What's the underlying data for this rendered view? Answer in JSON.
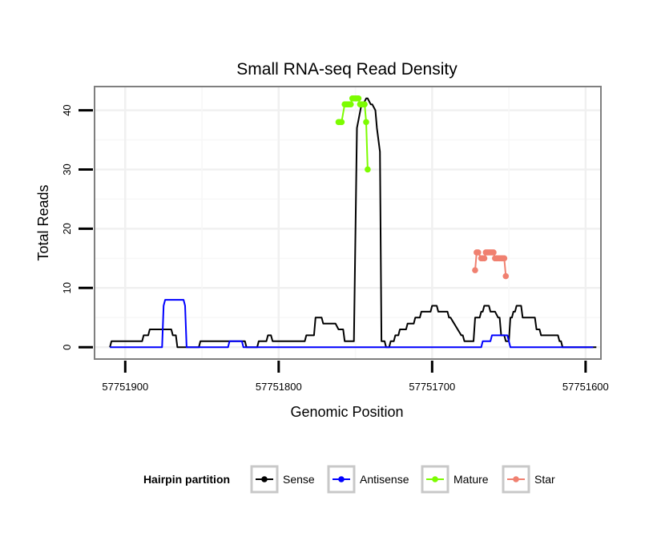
{
  "chart_data": {
    "type": "line",
    "title": "Small RNA-seq Read Density",
    "xlabel": "Genomic Position",
    "ylabel": "Total Reads",
    "xlim": [
      57751920,
      57751590
    ],
    "ylim": [
      -2,
      44
    ],
    "x_reversed": true,
    "grid": true,
    "x_ticks": [
      57751900,
      57751800,
      57751700,
      57751600
    ],
    "x_tick_labels": [
      "57751900",
      "57751800",
      "57751700",
      "57751600"
    ],
    "y_ticks": [
      0,
      10,
      20,
      30,
      40
    ],
    "y_tick_labels": [
      "0",
      "10",
      "20",
      "30",
      "40"
    ],
    "legend": {
      "title": "Hairpin partition",
      "position": "bottom",
      "entries": [
        {
          "label": "Sense",
          "color": "#000000"
        },
        {
          "label": "Antisense",
          "color": "#0000ff"
        },
        {
          "label": "Mature",
          "color": "#7cfc00"
        },
        {
          "label": "Star",
          "color": "#f08070"
        }
      ]
    },
    "series": [
      {
        "name": "Sense",
        "color": "#000000",
        "x": [
          57751910,
          57751909,
          57751889,
          57751888,
          57751885,
          57751884,
          57751870,
          57751869,
          57751867,
          57751866,
          57751852,
          57751851,
          57751822,
          57751821,
          57751814,
          57751813,
          57751808,
          57751807,
          57751805,
          57751804,
          57751783,
          57751782,
          57751777,
          57751776,
          57751772,
          57751771,
          57751769,
          57751767,
          57751763,
          57751761,
          57751758,
          57751757,
          57751751,
          57751749,
          57751746,
          57751745,
          57751743,
          57751742,
          57751740,
          57751739,
          57751737,
          57751736,
          57751734,
          57751733,
          57751731,
          57751730,
          57751728,
          57751727,
          57751725,
          57751724,
          57751722,
          57751721,
          57751717,
          57751716,
          57751712,
          57751711,
          57751708,
          57751707,
          57751701,
          57751700,
          57751697,
          57751696,
          57751690,
          57751689,
          57751688,
          57751681,
          57751680,
          57751679,
          57751673,
          57751672,
          57751669,
          57751668,
          57751667,
          57751666,
          57751663,
          57751662,
          57751659,
          57751657,
          57751656,
          57751655,
          57751653,
          57751652,
          57751650,
          57751649,
          57751648,
          57751647,
          57751646,
          57751645,
          57751642,
          57751641,
          57751633,
          57751632,
          57751630,
          57751629,
          57751618,
          57751617,
          57751616,
          57751615,
          57751597,
          57751595,
          57751593
        ],
        "y": [
          0,
          1,
          1,
          2,
          2,
          3,
          3,
          2,
          2,
          0,
          0,
          1,
          1,
          0,
          0,
          1,
          1,
          2,
          2,
          1,
          1,
          2,
          2,
          5,
          5,
          4,
          4,
          4,
          4,
          3,
          3,
          1,
          1,
          37,
          41,
          41,
          42,
          42,
          41,
          41,
          40,
          37,
          33,
          1,
          1,
          0,
          0,
          1,
          1,
          2,
          2,
          3,
          3,
          4,
          4,
          5,
          5,
          6,
          6,
          7,
          7,
          6,
          6,
          5,
          5,
          2,
          2,
          1,
          1,
          5,
          5,
          6,
          6,
          7,
          7,
          6,
          6,
          5,
          5,
          2,
          2,
          1,
          1,
          5,
          5,
          6,
          6,
          7,
          7,
          5,
          5,
          3,
          3,
          2,
          2,
          1,
          1,
          0,
          0,
          0,
          0
        ]
      },
      {
        "name": "Antisense",
        "color": "#0000ff",
        "x": [
          57751910,
          57751876,
          57751875,
          57751874,
          57751862,
          57751861,
          57751860,
          57751833,
          57751832,
          57751824,
          57751823,
          57751668,
          57751667,
          57751666,
          57751662,
          57751661,
          57751651,
          57751650,
          57751649,
          57751595
        ],
        "y": [
          0,
          0,
          7,
          8,
          8,
          7,
          0,
          0,
          1,
          1,
          0,
          0,
          1,
          1,
          1,
          2,
          2,
          1,
          0,
          0
        ]
      },
      {
        "name": "Mature",
        "color": "#7cfc00",
        "x": [
          57751761,
          57751760,
          57751759,
          57751757,
          57751756,
          57751755,
          57751754,
          57751753,
          57751752,
          57751751,
          57751750,
          57751749,
          57751748,
          57751747,
          57751746,
          57751745,
          57751744,
          57751743,
          57751742
        ],
        "y": [
          38,
          38,
          38,
          41,
          41,
          41,
          41,
          41,
          42,
          42,
          42,
          42,
          42,
          41,
          41,
          41,
          41,
          38,
          30
        ]
      },
      {
        "name": "Star",
        "color": "#f08070",
        "x": [
          57751672,
          57751671,
          57751670,
          57751668,
          57751667,
          57751666,
          57751665,
          57751664,
          57751663,
          57751662,
          57751661,
          57751660,
          57751659,
          57751658,
          57751657,
          57751656,
          57751655,
          57751654,
          57751653,
          57751652
        ],
        "y": [
          13,
          16,
          16,
          15,
          15,
          15,
          16,
          16,
          16,
          16,
          16,
          16,
          15,
          15,
          15,
          15,
          15,
          15,
          15,
          12
        ]
      }
    ]
  }
}
